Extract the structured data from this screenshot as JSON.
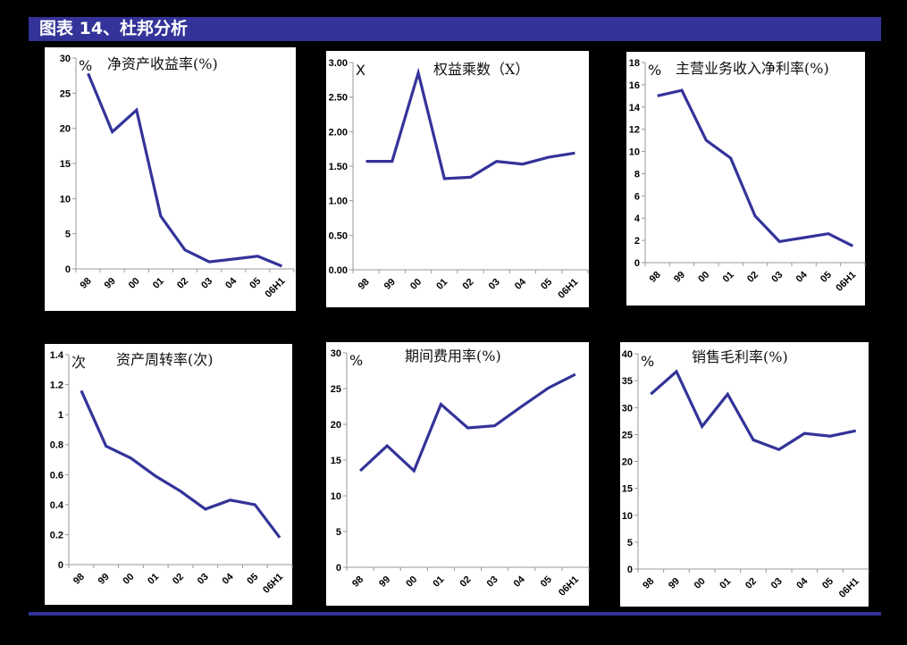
{
  "header": {
    "title": "图表 14、杜邦分析"
  },
  "colors": {
    "accent": "#333399",
    "line": "#333399",
    "axis": "#999999",
    "background": "#000000",
    "panel": "#ffffff"
  },
  "chart_data": [
    {
      "id": "roe",
      "type": "line",
      "title": "净资产收益率(%)",
      "unit": "%",
      "categories": [
        "98",
        "99",
        "00",
        "01",
        "02",
        "03",
        "04",
        "05",
        "06H1"
      ],
      "values": [
        27.8,
        19.5,
        22.6,
        7.5,
        2.7,
        1.0,
        1.4,
        1.8,
        0.4
      ],
      "yticks": [
        "0",
        "5",
        "10",
        "15",
        "20",
        "25",
        "30"
      ],
      "ylim": [
        0,
        30
      ],
      "xlabel": "",
      "ylabel": "%",
      "grid": false,
      "legend": "none"
    },
    {
      "id": "equity-multiplier",
      "type": "line",
      "title": "权益乘数（X）",
      "unit": "X",
      "categories": [
        "98",
        "99",
        "00",
        "01",
        "02",
        "03",
        "04",
        "05",
        "06H1"
      ],
      "values": [
        1.57,
        1.57,
        2.85,
        1.32,
        1.34,
        1.57,
        1.53,
        1.63,
        1.69
      ],
      "yticks": [
        "0.00",
        "0.50",
        "1.00",
        "1.50",
        "2.00",
        "2.50",
        "3.00"
      ],
      "ylim": [
        0,
        3
      ],
      "xlabel": "",
      "ylabel": "X",
      "grid": false,
      "legend": "none"
    },
    {
      "id": "net-profit-margin",
      "type": "line",
      "title": "主营业务收入净利率(%)",
      "unit": "%",
      "categories": [
        "98",
        "99",
        "00",
        "01",
        "02",
        "03",
        "04",
        "05",
        "06H1"
      ],
      "values": [
        15.0,
        15.5,
        11.0,
        9.4,
        4.2,
        1.9,
        2.25,
        2.6,
        1.5
      ],
      "yticks": [
        "0",
        "2",
        "4",
        "6",
        "8",
        "10",
        "12",
        "14",
        "16",
        "18"
      ],
      "ylim": [
        0,
        18
      ],
      "xlabel": "",
      "ylabel": "%",
      "grid": false,
      "legend": "none"
    },
    {
      "id": "asset-turnover",
      "type": "line",
      "title": "资产周转率(次)",
      "unit": "次",
      "categories": [
        "98",
        "99",
        "00",
        "01",
        "02",
        "03",
        "04",
        "05",
        "06H1"
      ],
      "values": [
        1.16,
        0.79,
        0.71,
        0.59,
        0.49,
        0.37,
        0.43,
        0.4,
        0.18
      ],
      "yticks": [
        "0",
        "0.2",
        "0.4",
        "0.6",
        "0.8",
        "1",
        "1.2",
        "1.4"
      ],
      "ylim": [
        0,
        1.4
      ],
      "xlabel": "",
      "ylabel": "次",
      "grid": false,
      "legend": "none"
    },
    {
      "id": "expense-ratio",
      "type": "line",
      "title": "期间费用率(%)",
      "unit": "%",
      "categories": [
        "98",
        "99",
        "00",
        "01",
        "02",
        "03",
        "04",
        "05",
        "06H1"
      ],
      "values": [
        13.5,
        17.0,
        13.5,
        22.8,
        19.5,
        19.8,
        22.5,
        25.1,
        27.0
      ],
      "yticks": [
        "0",
        "5",
        "10",
        "15",
        "20",
        "25",
        "30"
      ],
      "ylim": [
        0,
        30
      ],
      "xlabel": "",
      "ylabel": "%",
      "grid": false,
      "legend": "none"
    },
    {
      "id": "gross-margin",
      "type": "line",
      "title": "销售毛利率(%)",
      "unit": "%",
      "categories": [
        "98",
        "99",
        "00",
        "01",
        "02",
        "03",
        "04",
        "05",
        "06H1"
      ],
      "values": [
        32.5,
        36.7,
        26.5,
        32.5,
        24.0,
        22.2,
        25.2,
        24.7,
        25.7
      ],
      "yticks": [
        "0",
        "5",
        "10",
        "15",
        "20",
        "25",
        "30",
        "35",
        "40"
      ],
      "ylim": [
        0,
        40
      ],
      "xlabel": "",
      "ylabel": "%",
      "grid": false,
      "legend": "none"
    }
  ]
}
